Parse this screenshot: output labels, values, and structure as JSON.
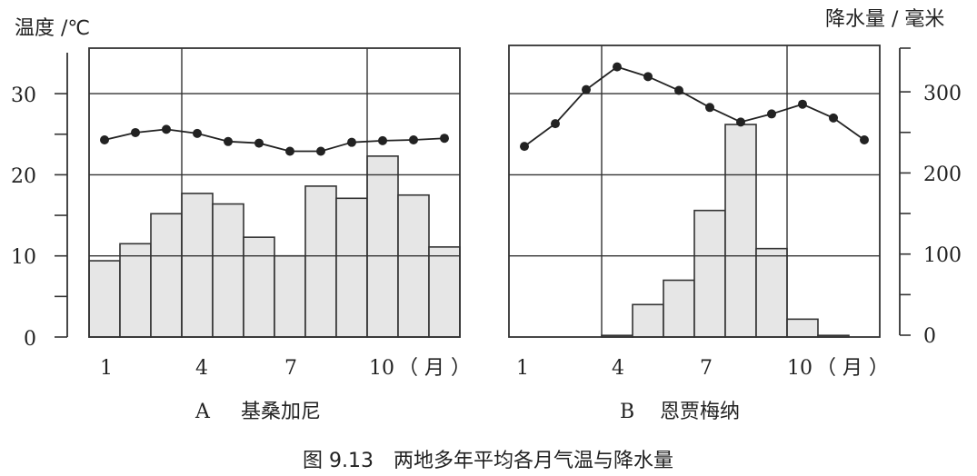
{
  "chart_data": [
    {
      "type": "bar+line",
      "panel_label": "A",
      "title": "基桑加尼",
      "x": [
        1,
        2,
        3,
        4,
        5,
        6,
        7,
        8,
        9,
        10,
        11,
        12
      ],
      "x_ticks": [
        "1",
        "4",
        "7",
        "10"
      ],
      "x_unit": "（ 月 ）",
      "series": [
        {
          "name": "气温",
          "type": "line",
          "axis": "left",
          "values": [
            24.3,
            25.2,
            25.6,
            25.1,
            24.1,
            23.9,
            22.9,
            22.9,
            24.0,
            24.2,
            24.3,
            24.5
          ]
        },
        {
          "name": "降水量",
          "type": "bar",
          "axis": "right",
          "values": [
            94,
            115,
            152,
            177,
            164,
            123,
            100,
            186,
            171,
            223,
            175,
            111
          ]
        }
      ],
      "ylabel_left": "温度 /℃",
      "ylim_left": [
        0,
        35
      ],
      "yticks_left": [
        "0",
        "10",
        "20",
        "30"
      ],
      "ylim_right": [
        0,
        350
      ],
      "grid": true
    },
    {
      "type": "bar+line",
      "panel_label": "B",
      "title": "恩贾梅纳",
      "x": [
        1,
        2,
        3,
        4,
        5,
        6,
        7,
        8,
        9,
        10,
        11,
        12
      ],
      "x_ticks": [
        "1",
        "4",
        "7",
        "10"
      ],
      "x_unit": "（ 月 ）",
      "series": [
        {
          "name": "气温",
          "type": "line",
          "axis": "left",
          "values": [
            23.5,
            26.3,
            30.5,
            33.3,
            32.1,
            30.4,
            28.3,
            26.5,
            27.5,
            28.7,
            27.0,
            24.3
          ]
        },
        {
          "name": "降水量",
          "type": "bar",
          "axis": "right",
          "values": [
            0,
            0,
            0,
            2,
            40,
            70,
            156,
            262,
            109,
            22,
            2,
            0
          ]
        }
      ],
      "ylabel_right": "降水量 / 毫米",
      "ylim_right": [
        0,
        350
      ],
      "yticks_right": [
        "0",
        "100",
        "200",
        "300"
      ],
      "ylim_left": [
        0,
        35
      ],
      "grid": true
    }
  ],
  "figure_caption": "图 9.13　两地多年平均各月气温与降水量"
}
